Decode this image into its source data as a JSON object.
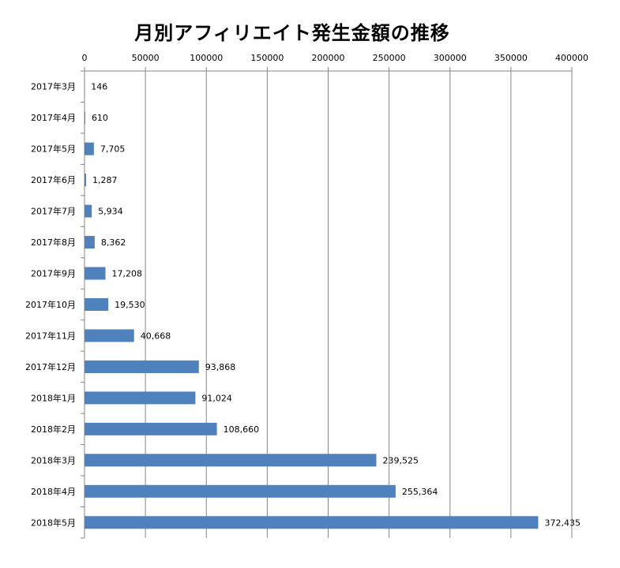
{
  "chart_data": {
    "type": "bar",
    "orientation": "horizontal",
    "title": "月別アフィリエイト発生金額の推移",
    "xlabel": "",
    "ylabel": "",
    "xlim": [
      0,
      400000
    ],
    "x_ticks": [
      "0",
      "50000",
      "100000",
      "150000",
      "200000",
      "250000",
      "300000",
      "350000",
      "400000"
    ],
    "x_axis_position": "top",
    "grid": "vertical",
    "legend": "none",
    "bar_color": "#4f81bd",
    "categories": [
      "2017年3月",
      "2017年4月",
      "2017年5月",
      "2017年6月",
      "2017年7月",
      "2017年8月",
      "2017年9月",
      "2017年10月",
      "2017年11月",
      "2017年12月",
      "2018年1月",
      "2018年2月",
      "2018年3月",
      "2018年4月",
      "2018年5月"
    ],
    "values": [
      146,
      610,
      7705,
      1287,
      5934,
      8362,
      17208,
      19530,
      40668,
      93868,
      91024,
      108660,
      239525,
      255364,
      372435
    ],
    "data_labels": [
      "146",
      "610",
      "7,705",
      "1,287",
      "5,934",
      "8,362",
      "17,208",
      "19,530",
      "40,668",
      "93,868",
      "91,024",
      "108,660",
      "239,525",
      "255,364",
      "372,435"
    ]
  }
}
